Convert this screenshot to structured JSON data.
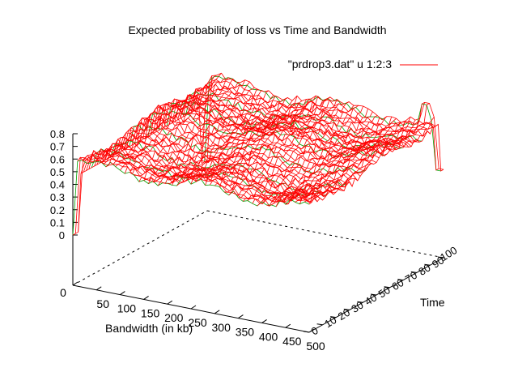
{
  "chart_data": {
    "type": "surface",
    "title": "Expected probability of loss vs Time and Bandwidth",
    "legend": {
      "label": "\"prdrop3.dat\" u 1:2:3",
      "color": "#ff0000",
      "placement": "top-right"
    },
    "xlabel": "Bandwidth (in kb)",
    "ylabel": "Time",
    "zlabel": "",
    "x_ticks": [
      "0",
      "50",
      "100",
      "150",
      "200",
      "250",
      "300",
      "350",
      "400",
      "450",
      "500"
    ],
    "y_ticks": [
      "0",
      "10",
      "20",
      "30",
      "40",
      "50",
      "60",
      "70",
      "80",
      "90",
      "100"
    ],
    "z_ticks": [
      "0",
      "0.1",
      "0.2",
      "0.3",
      "0.4",
      "0.5",
      "0.6",
      "0.7",
      "0.8"
    ],
    "xlim": [
      0,
      500
    ],
    "ylim": [
      0,
      100
    ],
    "zlim": [
      0,
      0.8
    ],
    "grid_resolution": {
      "bandwidth_step_kb": 10,
      "time_step": 2
    },
    "surface_summary": {
      "plateau_value_low_time": 0.55,
      "plateau_value_high_time": 0.65,
      "dip_at_bandwidth_zero": 0.0,
      "edge_spikes_near_time_100": [
        0.8,
        0.3
      ]
    },
    "colors": {
      "mesh_top": "#ff0000",
      "mesh_bottom": "#00a000",
      "axes": "#000000"
    }
  }
}
